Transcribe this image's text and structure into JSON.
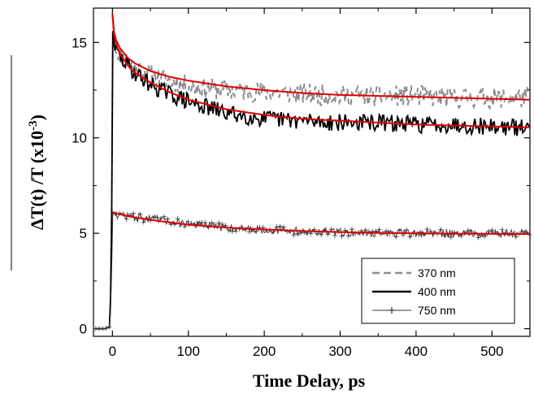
{
  "chart_data": {
    "type": "line",
    "title": "",
    "xlabel": "Time Delay, ps",
    "ylabel_main": "ΔT(t) /T (x10",
    "ylabel_exp": "-3",
    "ylabel_close": ")",
    "xlim": [
      -25,
      550
    ],
    "ylim": [
      -0.4,
      16.8
    ],
    "xticks": [
      0,
      100,
      200,
      300,
      400,
      500
    ],
    "yticks": [
      0,
      5,
      10,
      15
    ],
    "xtick_labels": [
      "0",
      "100",
      "200",
      "300",
      "400",
      "500"
    ],
    "ytick_labels": [
      "0",
      "5",
      "10",
      "15"
    ],
    "grid": false,
    "legend_position": "bottom-right",
    "series": [
      {
        "name": "370 nm",
        "style": "dashed",
        "color": "#8c8c8c",
        "x": [
          -20,
          -10,
          -3,
          -1,
          0,
          2,
          5,
          10,
          20,
          30,
          50,
          75,
          100,
          150,
          200,
          250,
          300,
          350,
          400,
          450,
          500,
          550
        ],
        "y": [
          0.0,
          0.0,
          0.1,
          6.0,
          15.6,
          15.0,
          14.7,
          14.4,
          14.0,
          13.7,
          13.3,
          13.0,
          12.7,
          12.5,
          12.4,
          12.3,
          12.2,
          12.2,
          12.2,
          12.1,
          12.1,
          12.1
        ]
      },
      {
        "name": "400 nm",
        "style": "solid-thick",
        "color": "#000000",
        "x": [
          -20,
          -10,
          -3,
          -1,
          0,
          2,
          5,
          10,
          20,
          30,
          50,
          75,
          100,
          150,
          200,
          250,
          300,
          350,
          400,
          450,
          500,
          550
        ],
        "y": [
          0.0,
          0.0,
          0.1,
          6.0,
          15.8,
          15.0,
          14.6,
          14.2,
          13.8,
          13.4,
          12.8,
          12.3,
          11.9,
          11.3,
          11.0,
          10.9,
          10.8,
          10.8,
          10.7,
          10.7,
          10.6,
          10.5
        ]
      },
      {
        "name": "750 nm",
        "style": "solid-cross",
        "color": "#333333",
        "x": [
          -20,
          -10,
          -3,
          -1,
          0,
          2,
          5,
          10,
          20,
          50,
          100,
          150,
          200,
          250,
          300,
          350,
          400,
          450,
          500,
          550
        ],
        "y": [
          0.0,
          0.0,
          0.1,
          3.0,
          6.0,
          6.1,
          6.0,
          5.95,
          5.9,
          5.75,
          5.5,
          5.3,
          5.2,
          5.1,
          5.05,
          5.0,
          5.0,
          5.0,
          5.0,
          5.0
        ]
      },
      {
        "name": "",
        "role": "fit",
        "color": "#e00000",
        "x": [
          0,
          2,
          5,
          10,
          20,
          30,
          50,
          75,
          100,
          150,
          200,
          250,
          300,
          350,
          400,
          450,
          500,
          550
        ],
        "y": [
          16.5,
          15.6,
          15.1,
          14.7,
          14.2,
          13.9,
          13.5,
          13.2,
          13.0,
          12.7,
          12.5,
          12.35,
          12.25,
          12.2,
          12.15,
          12.1,
          12.05,
          12.0
        ]
      },
      {
        "name": "",
        "role": "fit",
        "color": "#e00000",
        "x": [
          0,
          2,
          5,
          10,
          20,
          30,
          50,
          75,
          100,
          150,
          200,
          250,
          300,
          350,
          400,
          450,
          500,
          550
        ],
        "y": [
          16.5,
          15.4,
          14.9,
          14.4,
          13.8,
          13.4,
          12.9,
          12.4,
          12.0,
          11.5,
          11.2,
          11.0,
          10.9,
          10.8,
          10.7,
          10.65,
          10.6,
          10.55
        ]
      },
      {
        "name": "",
        "role": "fit",
        "color": "#e00000",
        "x": [
          0,
          5,
          10,
          20,
          50,
          100,
          150,
          200,
          250,
          300,
          350,
          400,
          450,
          500,
          550
        ],
        "y": [
          6.1,
          6.05,
          6.0,
          5.9,
          5.7,
          5.45,
          5.3,
          5.2,
          5.12,
          5.06,
          5.02,
          5.0,
          4.98,
          4.97,
          4.96
        ]
      }
    ]
  }
}
